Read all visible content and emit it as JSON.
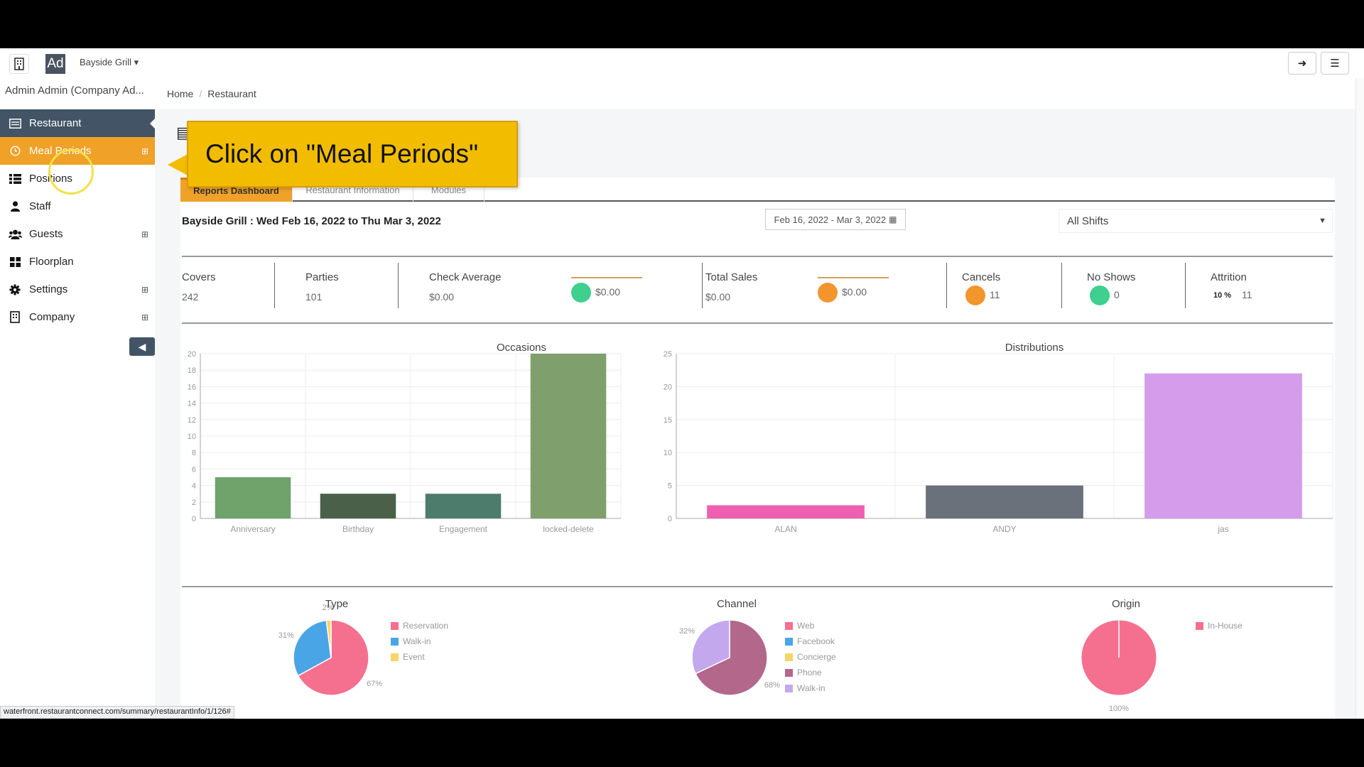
{
  "topbar": {
    "logo_text": "Ad",
    "restaurant": "Bayside Grill"
  },
  "sidebar": {
    "user_label": "Admin Admin (Company Ad...",
    "items": [
      {
        "label": "Restaurant",
        "icon": "list-icon"
      },
      {
        "label": "Meal Periods",
        "icon": "clock-icon"
      },
      {
        "label": "Positions",
        "icon": "list-icon"
      },
      {
        "label": "Staff",
        "icon": "user-icon"
      },
      {
        "label": "Guests",
        "icon": "users-icon",
        "expandable": true
      },
      {
        "label": "Floorplan",
        "icon": "grid-icon"
      },
      {
        "label": "Settings",
        "icon": "gear-icon",
        "expandable": true
      },
      {
        "label": "Company",
        "icon": "building-icon",
        "expandable": true
      }
    ]
  },
  "breadcrumb": {
    "home": "Home",
    "current": "Restaurant"
  },
  "callout": {
    "text": "Click on \"Meal Periods\""
  },
  "tabs": [
    "Reports Dashboard",
    "Restaurant Information",
    "Modules"
  ],
  "report": {
    "title": "Bayside Grill : Wed Feb 16, 2022 to Thu Mar 3, 2022",
    "date_range": "Feb 16, 2022 - Mar 3, 2022",
    "shift": "All Shifts"
  },
  "stats": {
    "covers": {
      "label": "Covers",
      "value": "242"
    },
    "parties": {
      "label": "Parties",
      "value": "101"
    },
    "check_average": {
      "label": "Check Average",
      "value": "$0.00",
      "indicator": "$0.00"
    },
    "total_sales": {
      "label": "Total Sales",
      "value": "$0.00",
      "indicator": "$0.00"
    },
    "cancels": {
      "label": "Cancels",
      "value": "11"
    },
    "no_shows": {
      "label": "No Shows",
      "value": "0"
    },
    "attrition": {
      "label": "Attrition",
      "percent": "10 %",
      "value": "11"
    }
  },
  "colors": {
    "sidebar_active": "#425465",
    "accent": "#f0a128",
    "dot_green": "#3fcf8e",
    "dot_orange": "#f2952d"
  },
  "chart_data": [
    {
      "type": "bar",
      "title": "Occasions",
      "categories": [
        "Anniversary",
        "Birthday",
        "Engagement",
        "locked-delete"
      ],
      "values": [
        5,
        3,
        3,
        20
      ],
      "ylim": [
        0,
        20
      ],
      "yticks": [
        0,
        2,
        4,
        6,
        8,
        10,
        12,
        14,
        16,
        18,
        20
      ],
      "colors": [
        "#6fa36b",
        "#4b6049",
        "#4e7c6c",
        "#7fa06c"
      ]
    },
    {
      "type": "bar",
      "title": "Distributions",
      "categories": [
        "ALAN",
        "ANDY",
        "jas"
      ],
      "values": [
        2,
        5,
        22
      ],
      "ylim": [
        0,
        25
      ],
      "yticks": [
        0,
        5,
        10,
        15,
        20,
        25
      ],
      "colors": [
        "#ef5fb1",
        "#6b717a",
        "#d59ceb"
      ]
    },
    {
      "type": "pie",
      "title": "Type",
      "labels": [
        "Reservation",
        "Walk-in",
        "Event"
      ],
      "values": [
        67,
        31,
        2
      ],
      "value_labels": [
        "67%",
        "31%",
        "2%"
      ],
      "colors": [
        "#f4708e",
        "#4aa5e6",
        "#f8d568"
      ]
    },
    {
      "type": "pie",
      "title": "Channel",
      "labels": [
        "Web",
        "Facebook",
        "Concierge",
        "Phone",
        "Walk-in"
      ],
      "values": [
        0,
        0,
        0,
        68,
        32
      ],
      "value_labels": [
        "",
        "",
        "",
        "68%",
        "32%"
      ],
      "colors": [
        "#f4708e",
        "#4aa5e6",
        "#f8d568",
        "#b2678b",
        "#c4a8ee"
      ]
    },
    {
      "type": "pie",
      "title": "Origin",
      "labels": [
        "In-House"
      ],
      "values": [
        100
      ],
      "value_labels": [
        "100%"
      ],
      "colors": [
        "#f4708e"
      ]
    }
  ],
  "status_url": "waterfront.restaurantconnect.com/summary/restaurantInfo/1/126#"
}
